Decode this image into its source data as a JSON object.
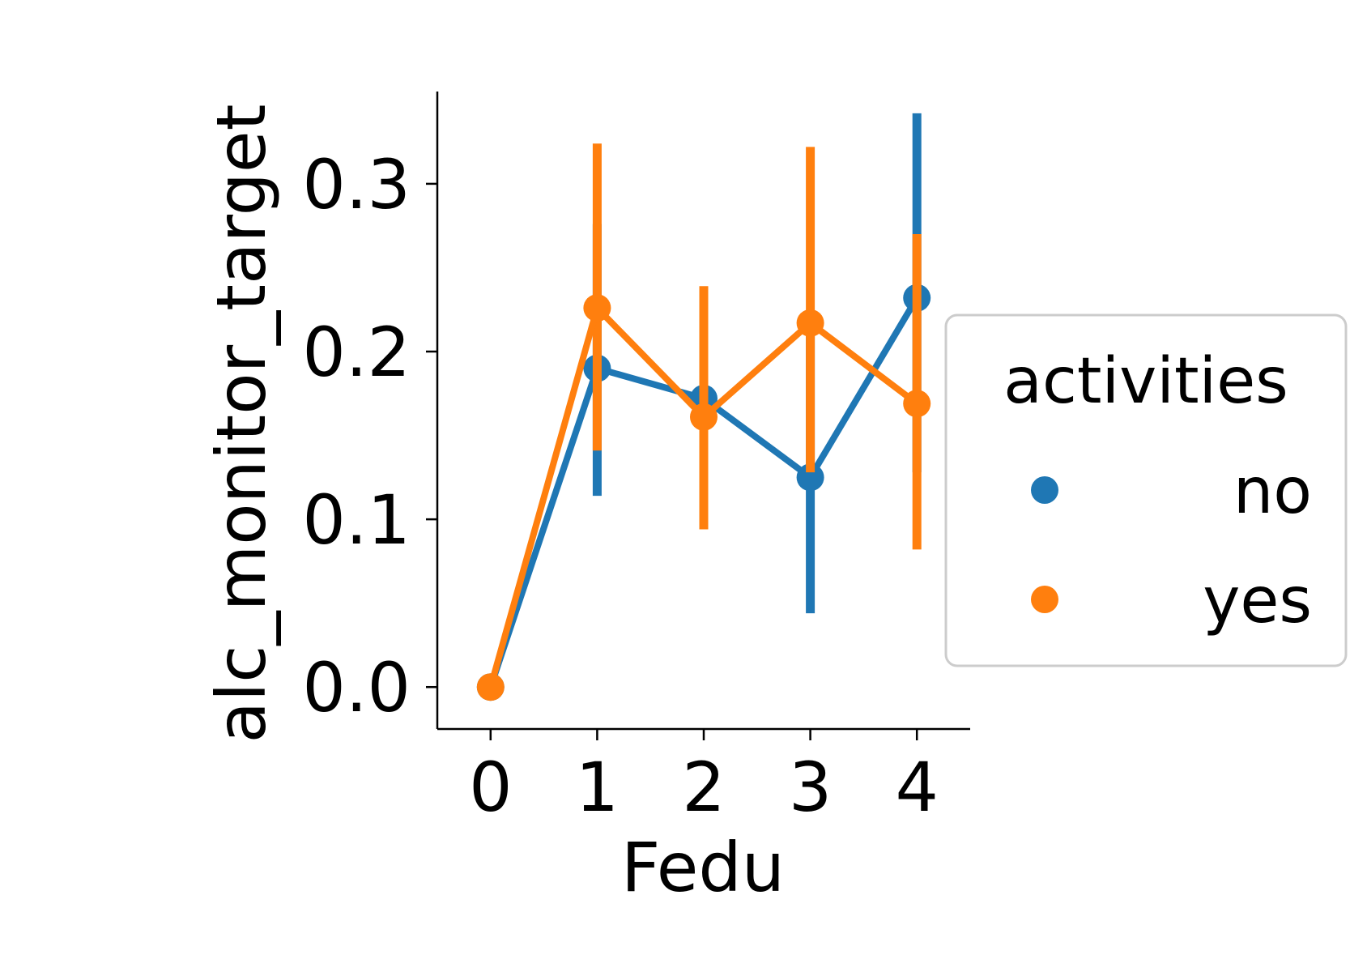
{
  "chart_data": {
    "type": "line",
    "title": "",
    "xlabel": "Fedu",
    "ylabel": "alc_monitor_target",
    "x": [
      0,
      1,
      2,
      3,
      4
    ],
    "xticks": [
      "0",
      "1",
      "2",
      "3",
      "4"
    ],
    "yticks": [
      "0.0",
      "0.1",
      "0.2",
      "0.3"
    ],
    "ytick_values": [
      0.0,
      0.1,
      0.2,
      0.3
    ],
    "ylim": [
      -0.025,
      0.355
    ],
    "xlim": [
      -0.5,
      4.5
    ],
    "grid": false,
    "legend": {
      "title": "activities",
      "placement": "outside-right"
    },
    "series": [
      {
        "name": "no",
        "color": "#1f77b4",
        "values": [
          0.0,
          0.19,
          0.172,
          0.125,
          0.232
        ],
        "ci_low": [
          0.0,
          0.114,
          0.105,
          0.044,
          0.128
        ],
        "ci_high": [
          0.0,
          0.276,
          0.233,
          0.212,
          0.342
        ]
      },
      {
        "name": "yes",
        "color": "#ff7f0e",
        "values": [
          0.0,
          0.226,
          0.161,
          0.217,
          0.169
        ],
        "ci_low": [
          0.0,
          0.141,
          0.094,
          0.128,
          0.082
        ],
        "ci_high": [
          0.0,
          0.324,
          0.239,
          0.322,
          0.27
        ]
      }
    ]
  }
}
